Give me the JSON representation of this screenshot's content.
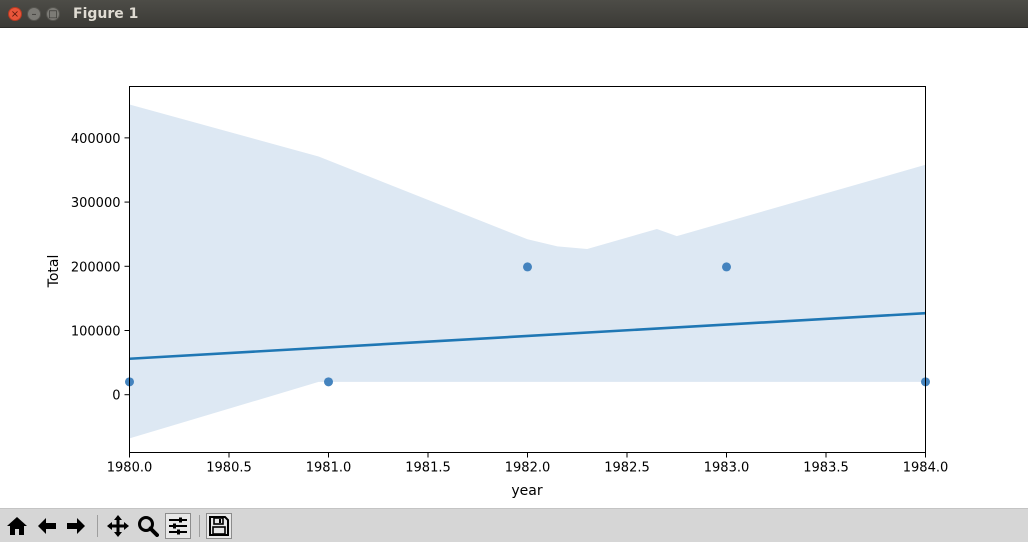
{
  "window": {
    "title": "Figure 1",
    "close_glyph": "×",
    "minimize_glyph": "–",
    "maximize_glyph": "□"
  },
  "toolbar": {
    "buttons": [
      "home-icon",
      "back-arrow-icon",
      "forward-arrow-icon",
      "pan-icon",
      "zoom-icon",
      "configure-subplots-icon",
      "save-icon"
    ]
  },
  "chart_data": {
    "type": "scatter",
    "xlabel": "year",
    "ylabel": "Total",
    "xlim": [
      1980.0,
      1984.0
    ],
    "ylim": [
      -90000,
      480000
    ],
    "xticks": [
      "1980.0",
      "1980.5",
      "1981.0",
      "1981.5",
      "1982.0",
      "1982.5",
      "1983.0",
      "1983.5",
      "1984.0"
    ],
    "yticks": [
      "0",
      "100000",
      "200000",
      "300000",
      "400000"
    ],
    "points": {
      "x": [
        1980,
        1981,
        1982,
        1983,
        1984
      ],
      "y": [
        20000,
        20000,
        199000,
        199000,
        20000
      ]
    },
    "regression_line": {
      "x": [
        1980,
        1984
      ],
      "y": [
        56000,
        127000
      ]
    },
    "confidence_band": {
      "x": [
        1980,
        1980.95,
        1982.0,
        1982.15,
        1982.3,
        1982.65,
        1982.75,
        1984
      ],
      "upper": [
        452000,
        371000,
        242000,
        231000,
        227000,
        258000,
        247000,
        358000
      ],
      "lower": [
        -68000,
        20000,
        20000,
        20000,
        20000,
        20000,
        20000,
        20000
      ]
    },
    "colors": {
      "points": "#3b7dba",
      "line": "#1f77b4",
      "band": "#dde8f3"
    },
    "grid": false,
    "legend": "none"
  }
}
